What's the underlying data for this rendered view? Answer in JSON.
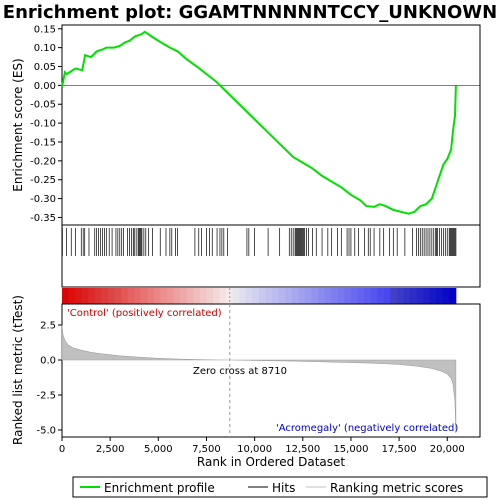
{
  "chart_data": {
    "type": "line",
    "title": "Enrichment plot: GGAMTNNNNNTCCY_UNKNOWN",
    "top_panel": {
      "ylabel": "Enrichment score (ES)",
      "ylim": [
        -0.37,
        0.16
      ],
      "yticks": [
        0.15,
        0.1,
        0.05,
        0.0,
        -0.05,
        -0.1,
        -0.15,
        -0.2,
        -0.25,
        -0.3,
        -0.35
      ],
      "ytick_labels": [
        "0.15",
        "0.10",
        "0.05",
        "0.00",
        "-0.05",
        "-0.10",
        "-0.15",
        "-0.20",
        "-0.25",
        "-0.30",
        "-0.35"
      ],
      "series": [
        {
          "name": "Enrichment profile",
          "color": "#00e000",
          "x": [
            0,
            150,
            250,
            700,
            1050,
            1200,
            1500,
            1800,
            2100,
            2300,
            2700,
            3000,
            3300,
            3500,
            3800,
            4100,
            4300,
            4700,
            5200,
            5600,
            6000,
            6500,
            7000,
            7500,
            8000,
            8500,
            9000,
            9500,
            10000,
            10500,
            11000,
            11500,
            12000,
            12500,
            13000,
            13500,
            14000,
            14500,
            15000,
            15500,
            15800,
            16200,
            16500,
            16800,
            17200,
            17600,
            18000,
            18300,
            18600,
            18900,
            19200,
            19400,
            19600,
            19800,
            20000,
            20200,
            20300,
            20400,
            20450
          ],
          "y": [
            -0.005,
            0.035,
            0.03,
            0.045,
            0.04,
            0.08,
            0.075,
            0.09,
            0.095,
            0.1,
            0.1,
            0.105,
            0.115,
            0.118,
            0.13,
            0.135,
            0.142,
            0.128,
            0.112,
            0.1,
            0.09,
            0.068,
            0.05,
            0.03,
            0.01,
            -0.015,
            -0.04,
            -0.065,
            -0.09,
            -0.115,
            -0.14,
            -0.165,
            -0.19,
            -0.205,
            -0.22,
            -0.24,
            -0.255,
            -0.27,
            -0.29,
            -0.305,
            -0.32,
            -0.322,
            -0.315,
            -0.32,
            -0.33,
            -0.335,
            -0.34,
            -0.335,
            -0.32,
            -0.315,
            -0.3,
            -0.27,
            -0.24,
            -0.21,
            -0.195,
            -0.17,
            -0.12,
            -0.08,
            0.0
          ]
        }
      ],
      "hits": [
        20,
        240,
        480,
        700,
        1000,
        1100,
        1180,
        1400,
        1700,
        1800,
        1900,
        2000,
        2100,
        2200,
        2300,
        2450,
        2600,
        2800,
        2900,
        3000,
        3100,
        3200,
        3400,
        3500,
        3600,
        3700,
        3750,
        3850,
        3950,
        4000,
        4050,
        4100,
        4150,
        4250,
        4350,
        4500,
        4700,
        5100,
        5400,
        5600,
        5700,
        5900,
        6000,
        6900,
        7100,
        7250,
        7500,
        7650,
        7800,
        8050,
        8200,
        8300,
        8400,
        8600,
        9600,
        9700,
        10000,
        10700,
        11300,
        11800,
        11900,
        12000,
        12100,
        12150,
        12200,
        12250,
        12300,
        12350,
        12400,
        12450,
        12500,
        12550,
        12600,
        12700,
        12800,
        13000,
        13200,
        13500,
        13800,
        14000,
        14300,
        14500,
        14800,
        14900,
        15000,
        15200,
        15400,
        15700,
        15900,
        16000,
        16200,
        16500,
        16700,
        17000,
        17200,
        17400,
        17800,
        18200,
        18400,
        18500,
        18600,
        18700,
        18800,
        18900,
        19000,
        19100,
        19200,
        19300,
        19400,
        19450,
        19500,
        19600,
        19700,
        19800,
        19900,
        20000,
        20100,
        20150,
        20200,
        20250,
        20300,
        20350,
        20400,
        20450
      ]
    },
    "bottom_panel": {
      "ylabel": "Ranked list metric (tTest)",
      "ylim": [
        -5.5,
        4.0
      ],
      "yticks": [
        2.5,
        0.0,
        -2.5,
        -5.0
      ],
      "ytick_labels": [
        "2.5",
        "0.0",
        "-2.5",
        "-5.0"
      ],
      "series": [
        {
          "name": "Ranking metric scores",
          "color": "#c0c0c0",
          "x": [
            0,
            50,
            150,
            300,
            600,
            1000,
            1500,
            2000,
            3000,
            4000,
            5000,
            6000,
            7000,
            8000,
            8710,
            10000,
            12000,
            14000,
            16000,
            17500,
            18500,
            19200,
            19700,
            20000,
            20200,
            20300,
            20400,
            20450
          ],
          "y": [
            2.5,
            1.8,
            1.4,
            1.1,
            0.85,
            0.7,
            0.55,
            0.45,
            0.3,
            0.2,
            0.12,
            0.07,
            0.03,
            0.01,
            0.0,
            -0.03,
            -0.08,
            -0.15,
            -0.22,
            -0.32,
            -0.45,
            -0.6,
            -0.8,
            -1.0,
            -1.3,
            -1.7,
            -3.0,
            -5.2
          ]
        }
      ],
      "zero_cross_label": "Zero cross at 8710",
      "zero_cross": 8710,
      "pos_label": "'Control' (positively correlated)",
      "pos_color": "#cc0000",
      "neg_label": "'Acromegaly' (negatively correlated)",
      "neg_color": "#0000cc",
      "xlabel": "Rank in Ordered Dataset",
      "xlim": [
        0,
        21700
      ],
      "xticks": [
        0,
        2500,
        5000,
        7500,
        10000,
        12500,
        15000,
        17500,
        20000
      ],
      "xtick_labels": [
        "0",
        "2,500",
        "5,000",
        "7,500",
        "10,000",
        "12,500",
        "15,000",
        "17,500",
        "20,000"
      ]
    },
    "legend": [
      {
        "label": "Enrichment profile",
        "color": "#00e000"
      },
      {
        "label": "Hits",
        "color": "#000000"
      },
      {
        "label": "Ranking metric scores",
        "color": "#c0c0c0"
      }
    ]
  }
}
